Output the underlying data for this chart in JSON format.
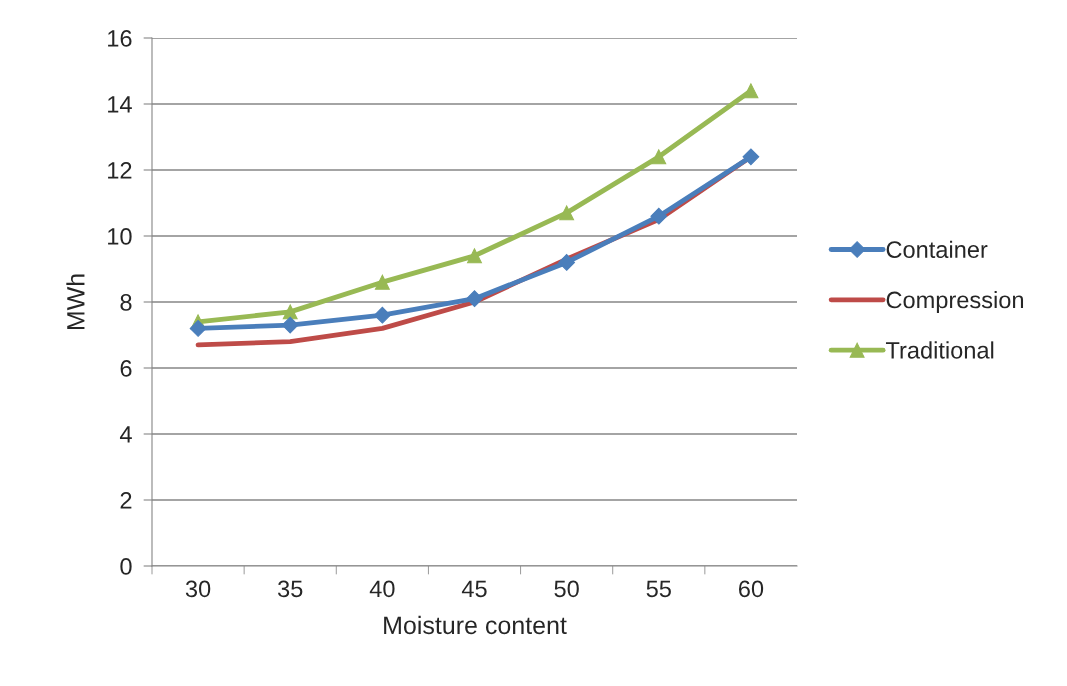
{
  "chart_data": {
    "type": "line",
    "xlabel": "Moisture content",
    "ylabel": "MWh",
    "categories": [
      "30",
      "35",
      "40",
      "45",
      "50",
      "55",
      "60"
    ],
    "series": [
      {
        "name": "Container",
        "color": "#4a7ebb",
        "marker": "diamond",
        "values": [
          7.2,
          7.3,
          7.6,
          8.1,
          9.2,
          10.6,
          12.4
        ]
      },
      {
        "name": "Compression",
        "color": "#be4b48",
        "marker": "none",
        "values": [
          6.7,
          6.8,
          7.2,
          8.0,
          9.3,
          10.5,
          12.4
        ]
      },
      {
        "name": "Traditional",
        "color": "#98b954",
        "marker": "triangle",
        "values": [
          7.4,
          7.7,
          8.6,
          9.4,
          10.7,
          12.4,
          14.4
        ]
      }
    ],
    "ylim": [
      0,
      16
    ],
    "yticks": [
      0,
      2,
      4,
      6,
      8,
      10,
      12,
      14,
      16
    ],
    "grid": "y",
    "legend": "right"
  }
}
